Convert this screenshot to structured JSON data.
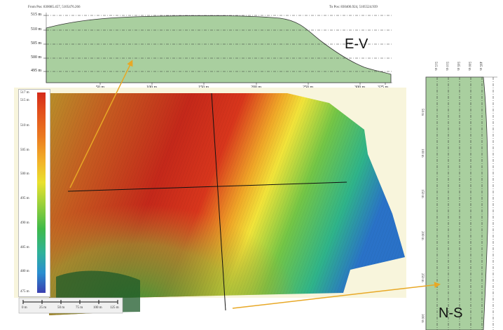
{
  "ev_profile": {
    "from_pos": "From Pos: 830085.457, 5105476.266",
    "to_pos": "To Pos: 830406.924, 5105524.939",
    "y_ticks": [
      "515 m",
      "510 m",
      "505 m",
      "500 m",
      "495 m"
    ],
    "x_ticks": [
      "50 m",
      "100 m",
      "150 m",
      "200 m",
      "250 m",
      "300 m",
      "325 m"
    ],
    "label": "E-V"
  },
  "ns_profile": {
    "label": "N-S",
    "elev_ticks": [
      "515 m",
      "510 m",
      "505 m",
      "500 m",
      "495 m"
    ],
    "dist_ticks": [
      "50 m",
      "100 m",
      "150 m",
      "200 m",
      "250 m",
      "300 m"
    ]
  },
  "legend": {
    "ticks": [
      "517 m",
      "515 m",
      "510 m",
      "505 m",
      "500 m",
      "495 m",
      "490 m",
      "485 m",
      "480 m",
      "475 m"
    ],
    "colors": [
      "#d42a1a",
      "#e14a1c",
      "#eb7a20",
      "#f2b52a",
      "#e9e12e",
      "#9fd23a",
      "#3fba4a",
      "#2fb29a",
      "#2a8ed0",
      "#3a3fb0"
    ]
  },
  "scale_bar": {
    "ticks": [
      "0 m",
      "25 m",
      "50 m",
      "75 m",
      "100 m",
      "125 m"
    ]
  },
  "colors": {
    "profile_fill": "#a9cf9f",
    "profile_stroke": "#333333",
    "arrow": "#e8a826",
    "terrain_bg": "#f8f5dc"
  }
}
